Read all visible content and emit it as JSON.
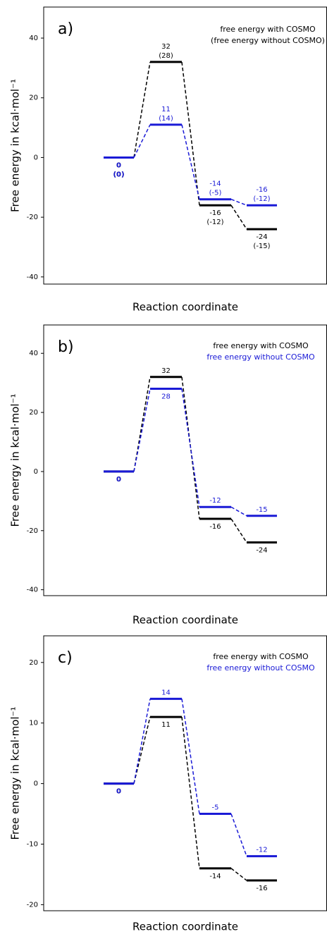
{
  "chart_data": [
    {
      "type": "energy",
      "panel": "a)",
      "ylabel": "Free energy in kcal·mol⁻¹",
      "xlabel": "Reaction coordinate",
      "annotations": [
        "free energy with COSMO",
        "(free energy without COSMO)"
      ],
      "categories": [
        null,
        null,
        null,
        null
      ],
      "ylim": [
        -42.4,
        50.4
      ],
      "yticks": [
        -40,
        -20,
        0,
        20,
        40
      ],
      "series": [
        {
          "color": "#000000",
          "values": [
            0,
            32,
            -16,
            -24
          ],
          "without_cosmo": [
            0,
            28,
            -12,
            -15
          ],
          "without_cosmo_labels": [
            "(0)",
            "(28)",
            "(-12)",
            "(-15)"
          ]
        },
        {
          "color": "#1a1ad6",
          "values": [
            0,
            11,
            -14,
            -16
          ],
          "without_cosmo": [
            0,
            14,
            -5,
            -12
          ],
          "without_cosmo_labels": [
            "(0)",
            "(14)",
            "(-5)",
            "(-12)"
          ]
        }
      ]
    },
    {
      "type": "energy",
      "panel": "b)",
      "ylabel": "Free energy in kcal·mol⁻¹",
      "xlabel": "Reaction coordinate",
      "categories": [
        null,
        null,
        null,
        null
      ],
      "ylim": [
        -42,
        49.6
      ],
      "yticks": [
        -40,
        -20,
        0,
        20,
        40
      ],
      "series": [
        {
          "name": "free energy with COSMO",
          "color": "#000000",
          "values": [
            0,
            32,
            -16,
            -24
          ]
        },
        {
          "name": "free energy without COSMO",
          "color": "#1a1ad6",
          "values": [
            0,
            28,
            -12,
            -15
          ]
        }
      ]
    },
    {
      "type": "energy",
      "panel": "c)",
      "ylabel": "Free energy in kcal·mol⁻¹",
      "xlabel": "Reaction coordinate",
      "categories": [
        null,
        null,
        null,
        null
      ],
      "ylim": [
        -21,
        24.4
      ],
      "yticks": [
        -20,
        -10,
        0,
        10,
        20
      ],
      "series": [
        {
          "name": "free energy with COSMO",
          "color": "#000000",
          "values": [
            0,
            11,
            -14,
            -16
          ]
        },
        {
          "name": "free energy without COSMO",
          "color": "#1a1ad6",
          "values": [
            0,
            14,
            -5,
            -12
          ]
        }
      ]
    }
  ]
}
